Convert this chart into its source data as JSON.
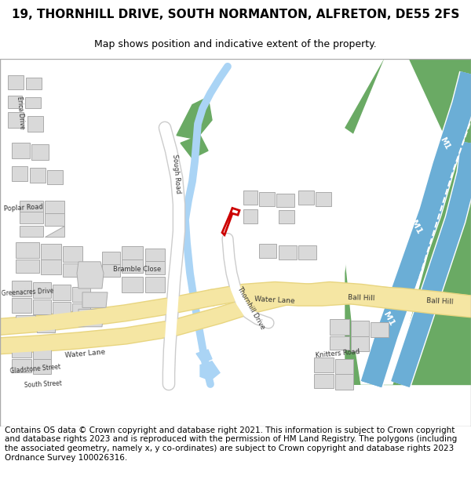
{
  "title": "19, THORNHILL DRIVE, SOUTH NORMANTON, ALFRETON, DE55 2FS",
  "subtitle": "Map shows position and indicative extent of the property.",
  "footer": "Contains OS data © Crown copyright and database right 2021. This information is subject to Crown copyright and database rights 2023 and is reproduced with the permission of HM Land Registry. The polygons (including the associated geometry, namely x, y co-ordinates) are subject to Crown copyright and database rights 2023 Ordnance Survey 100026316.",
  "bg_color": "#ffffff",
  "map_bg": "#f8f8f8",
  "road_color": "#f5e6a3",
  "road_outline": "#e8d580",
  "motorway_color": "#6baed6",
  "motorway_outline": "#ffffff",
  "green_area": "#6aaa64",
  "building_color": "#d9d9d9",
  "building_outline": "#aaaaaa",
  "stream_color": "#aad4f5",
  "plot_color": "#cc0000",
  "road_label_color": "#333333",
  "motorway_label_color": "#ffffff",
  "title_fontsize": 11,
  "subtitle_fontsize": 9,
  "footer_fontsize": 7.5
}
